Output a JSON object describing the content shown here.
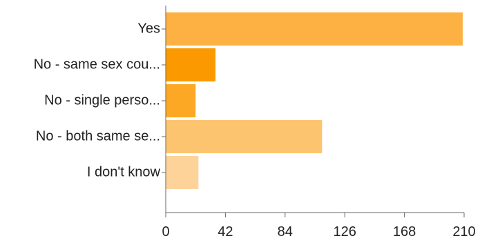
{
  "chart_data": {
    "type": "bar",
    "orientation": "horizontal",
    "categories": [
      "Yes",
      "No - same sex cou...",
      "No - single perso...",
      "No - both same se...",
      "I don't know"
    ],
    "values": [
      209,
      35,
      21,
      110,
      23
    ],
    "colors": [
      "#FDB143",
      "#FA9A00",
      "#FCA824",
      "#FDC46F",
      "#FDD39A"
    ],
    "xlim": [
      0,
      210
    ],
    "xticks": [
      0,
      42,
      84,
      126,
      168,
      210
    ],
    "xtick_labels": [
      "0",
      "42",
      "84",
      "126",
      "168",
      "210"
    ],
    "title": "",
    "xlabel": "",
    "ylabel": "",
    "grid": false,
    "legend": "none"
  }
}
